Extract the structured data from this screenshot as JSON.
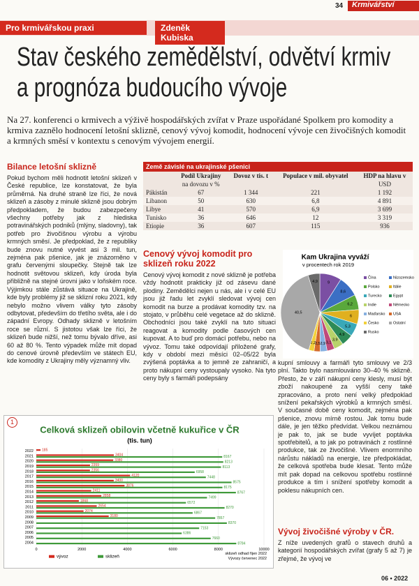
{
  "header": {
    "page_number": "34",
    "magazine": "Krmivářství",
    "section": "Pro krmivářskou praxi",
    "author": "Zdeněk Kubiska"
  },
  "title": [
    "Stav českého zemědělství, odvětví krmiv",
    "a prognóza budoucího vývoje"
  ],
  "lead": "Na 27. konferenci o krmivech a výživě hospodářských zvířat v Praze uspořádané Spolkem pro komodity a krmiva zaznělo hodnocení letošní sklizně, cenový vývoj komodit, hodnocení vývoje cen živočišných komodit a krmných směsí v kontextu s cenovým vývojem energií.",
  "sections": [
    {
      "heading": "Bilance letošní sklizně",
      "text": "Pokud bychom měli hodnotit letošní sklizeň v České republice, lze konstatovat, že byla průměrná. Na druhé straně lze říci, že nová sklizeň a zásoby z minulé sklizně jsou dobrým předpokladem, že budou zabezpečeny všechny potřeby jak z hlediska potravinářských podniků (mlýny, sladovny), tak potřeb pro živočišnou výrobu a výrobu krmných směsí. Je předpoklad, že z republiky bude znovu nutné vyvést asi 3 mil. tun, zejména pak pšenice, jak je znázorněno v grafu červenými sloupečky. Stejně tak lze hodnotit světovou sklizeň, kdy úroda byla přibližně na stejné úrovni jako v loňském roce. Výjimkou stále zůstává situace na Ukrajině, kde byly problémy již se sklizní roku 2021, kdy nebylo možno vlivem války tyto zásoby odbytovat, především do třetího světa, ale i do západní Evropy. Odhady sklizně v letošním roce se různí. S jistotou však lze říci, že sklizeň bude nižší, než tomu bývalo dříve, asi 60 až 80 %. Tento výpadek může mít dopad do cenové úrovně především ve státech EU, kde komodity z Ukrajiny měly významný vliv."
    },
    {
      "heading": "Cenový vývoj komodit pro sklizeň roku 2022",
      "text": "Cenový vývoj komodit z nové sklizně je potřeba vždy hodnotit prakticky již od zásevu dané plodiny. Zemědělci nejen u nás, ale i v celé EU jsou již řadu let zvyklí sledovat vývoj cen komodit na burze a prodávat komodity tzv. na stojato, v průběhu celé vegetace až do sklizně. Obchodníci jsou také zvyklí na tuto situaci reagovat a komodity podle časových cen kupovat. A to buď pro domácí potřebu, nebo na vývoz. Tomu také odpovídají přiložené grafy, kdy v období mezi měsíci 02–05/22 byla zvýšená poptávka a to jemně ze zahraničí, a proto nákupní ceny vystoupaly vysoko. Na tyto ceny byly s farmáři podepsány",
      "text_continued": "kupní smlouvy a farmáři tyto smlouvy ve 2/3 plní. Takto bylo nasmlouváno 30–40 % sklizně. Přesto, že v září nákupní ceny klesly, musí být zboží nakoupené za vyšší ceny také zpracováno, a proto není velký předpoklad snížení pekařských výrobků a krmných směsí. V současné době ceny komodit, zejména pak pšenice, znovu mírně rostou. Jak tomu bude dále, je jen těžko předvídat. Velkou neznámou je pak to, jak se bude vyvíjet poptávka spotřebitelů, a to jak po potravinách z rostlinné produkce, tak ze živočišné. Vlivem enormního nárůstu nákladů na energie, lze předpokládat, že celková spotřeba bude klesat. Tento může mít pak dopad na celkovou spotřebu rostlinné produkce a tím i snížení spotřeby komodit a poklesu nákupních cen."
    },
    {
      "heading": "Vývoj živočišné výroby v ČR.",
      "text": "Z níže uvedených grafů o stavech druhů a kategorií hospodářských zvířat (grafy 5 až 7) je zřejmé, že vývoj ve"
    }
  ],
  "table": {
    "caption": "Země závislé na ukrajinské pšenici",
    "header": [
      "Podíl Ukrajiny",
      "Dovoz v tis. t",
      "Populace v mil. obyvatel",
      "HDP na hlavu v"
    ],
    "units": [
      "na dovozu v %",
      "USD"
    ],
    "rows": [
      [
        "Pákistán",
        "67",
        "1 344",
        "221",
        "1 192"
      ],
      [
        "Libanon",
        "50",
        "630",
        "6,8",
        "4 891"
      ],
      [
        "Libye",
        "41",
        "570",
        "6,9",
        "3 699"
      ],
      [
        "Tunisko",
        "36",
        "646",
        "12",
        "3 319"
      ],
      [
        "Etiopie",
        "36",
        "607",
        "115",
        "936"
      ]
    ]
  },
  "figure_number": "1",
  "footer": "06 • 2022",
  "chart_data": [
    {
      "type": "pie",
      "title": "Kam Ukrajina vyváží",
      "subtitle": "v procentech rok 2019",
      "categories": [
        "Čína",
        "Nizozemsko",
        "Polsko",
        "Itálie",
        "Turecko",
        "Egypt",
        "Indie",
        "Německo",
        "Maďarsko",
        "USA",
        "Česko",
        "Ostatní",
        "Rusko"
      ],
      "values": [
        9,
        8.6,
        6.2,
        6,
        5.3,
        4.9,
        3.9,
        3.1,
        2.9,
        2.5,
        2.2,
        40.5,
        4.9
      ],
      "value_labels": [
        "9",
        "8,6",
        "6,2",
        "6",
        "5,3",
        "4,9",
        "3,9",
        "3,1",
        "2,9",
        "2,5",
        "2,2",
        "40,5",
        "4,9"
      ],
      "colors": [
        "#7b4fa3",
        "#3b6fc4",
        "#5aa83c",
        "#e0b020",
        "#39a8b8",
        "#2e8b57",
        "#b8d36a",
        "#c04a7a",
        "#86b0e0",
        "#d46a2a",
        "#f2d03a",
        "#a8a8a8",
        "#6a6a6a"
      ]
    },
    {
      "type": "hbar",
      "title": "Celková sklizeň obilovin včetně kukuřice v ČR",
      "subtitle": "(tis. tun)",
      "categories": [
        "2022",
        "2021",
        "2020",
        "2019",
        "2018",
        "2017",
        "2016",
        "2015",
        "2014",
        "2013",
        "2012",
        "2011",
        "2010",
        "2009",
        "2008",
        "2007",
        "2006",
        "2005",
        "2004"
      ],
      "series": [
        {
          "name": "vývoz",
          "color": "#d42a1e",
          "values": [
            185,
            3404,
            3380,
            2359,
            2356,
            4120,
            3400,
            3876,
            2411,
            2858,
            1868,
            2654,
            2074,
            3180,
            null,
            null,
            null,
            null,
            null
          ]
        },
        {
          "name": "sklizeň",
          "color": "#3f9a3a",
          "values": [
            null,
            8167,
            8213,
            8113,
            6958,
            7448,
            8575,
            8175,
            8767,
            7499,
            6572,
            8270,
            6867,
            7857,
            8370,
            7153,
            6386,
            7660,
            8784
          ]
        }
      ],
      "xlim": [
        0,
        10000
      ],
      "xticks": [
        0,
        2000,
        4000,
        6000,
        8000,
        10000
      ],
      "notes": [
        "sklizeň odhad říjen 2022",
        "Vývozy červenec 2022"
      ]
    }
  ]
}
